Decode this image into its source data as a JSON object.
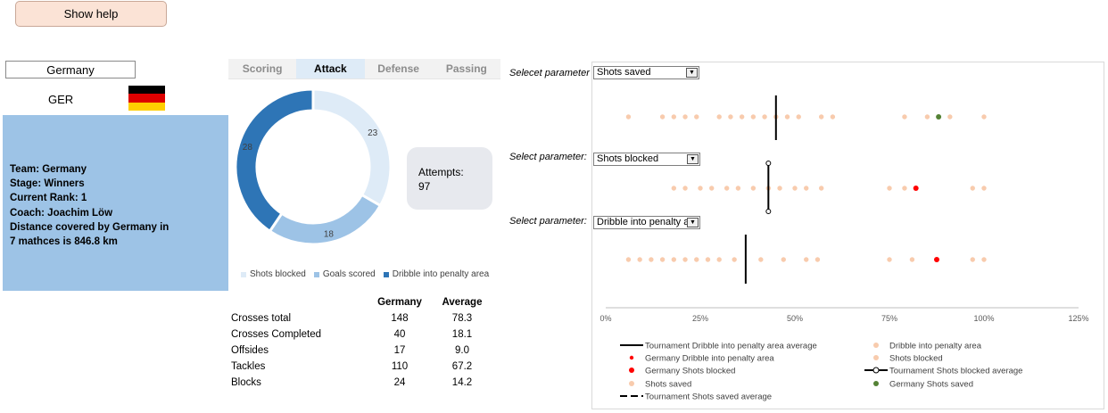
{
  "help_button": "Show help",
  "team_select": {
    "value": "Germany"
  },
  "team_code": "GER",
  "flag_colors": [
    "#000000",
    "#dd0000",
    "#ffce00"
  ],
  "info": {
    "lines": [
      "Team: Germany",
      "Stage: Winners",
      "Current Rank: 1",
      "Coach: Joachim Löw",
      "Distance covered by Germany in",
      "7 mathces is 846.8 km"
    ]
  },
  "tabs": [
    {
      "label": "Scoring",
      "active": false
    },
    {
      "label": "Attack",
      "active": true
    },
    {
      "label": "Defense",
      "active": false
    },
    {
      "label": "Passing",
      "active": false
    }
  ],
  "attempts": {
    "label": "Attempts:",
    "value": "97"
  },
  "stats_table": {
    "headers": [
      "",
      "Germany",
      "Average"
    ],
    "rows": [
      [
        "Crosses total",
        "148",
        "78.3"
      ],
      [
        "Crosses Completed",
        "40",
        "18.1"
      ],
      [
        "Offsides",
        "17",
        "9.0"
      ],
      [
        "Tackles",
        "110",
        "67.2"
      ],
      [
        "Blocks",
        "24",
        "14.2"
      ]
    ]
  },
  "selectors": [
    {
      "label": "Selecet parameter",
      "value": "Shots saved"
    },
    {
      "label": "Select parameter:",
      "value": "Shots blocked"
    },
    {
      "label": "Select parameter:",
      "value": "Dribble into penalty ar"
    }
  ],
  "chart_data": [
    {
      "type": "pie",
      "variant": "donut",
      "categories": [
        "Shots blocked",
        "Goals scored",
        "Dribble into penalty area"
      ],
      "values": [
        23,
        18,
        28
      ],
      "colors": [
        "#deebf7",
        "#9dc3e6",
        "#2e75b6"
      ],
      "legend": "bottom"
    },
    {
      "type": "scatter",
      "variant": "dot-strip",
      "xlim": [
        0,
        1.25
      ],
      "xticks": [
        0,
        0.25,
        0.5,
        0.75,
        1.0,
        1.25
      ],
      "xtick_labels": [
        "0%",
        "25%",
        "50%",
        "75%",
        "100%",
        "125%"
      ],
      "grid": false,
      "rows": [
        {
          "name": "Shots saved",
          "points": [
            0.06,
            0.15,
            0.18,
            0.21,
            0.24,
            0.3,
            0.33,
            0.36,
            0.39,
            0.42,
            0.45,
            0.48,
            0.51,
            0.57,
            0.6,
            0.79,
            0.85,
            0.91,
            1.0
          ],
          "highlight": 0.88,
          "highlight_color": "#548235",
          "average": 0.45,
          "average_style": "solid"
        },
        {
          "name": "Shots blocked",
          "points": [
            0.18,
            0.21,
            0.25,
            0.28,
            0.32,
            0.35,
            0.39,
            0.43,
            0.46,
            0.5,
            0.53,
            0.57,
            0.75,
            0.79,
            0.97,
            1.0
          ],
          "highlight": 0.82,
          "highlight_color": "#ff0000",
          "average": 0.43,
          "average_style": "circle-ends"
        },
        {
          "name": "Dribble into penalty area",
          "points": [
            0.06,
            0.09,
            0.12,
            0.15,
            0.18,
            0.21,
            0.24,
            0.27,
            0.3,
            0.34,
            0.41,
            0.47,
            0.53,
            0.56,
            0.75,
            0.81,
            0.97,
            1.0
          ],
          "highlight": 0.875,
          "highlight_color": "#ff0000",
          "average": 0.37,
          "average_style": "solid"
        }
      ],
      "legend": [
        {
          "text": "Tournament Dribble into penalty area average",
          "marker": "line",
          "color": "#000000"
        },
        {
          "text": "Dribble into penalty area",
          "marker": "dot",
          "color": "#f8cbad"
        },
        {
          "text": "Germany Dribble into penalty area",
          "marker": "small-dot",
          "color": "#ff0000"
        },
        {
          "text": "Shots blocked",
          "marker": "dot",
          "color": "#f8cbad"
        },
        {
          "text": "Germany Shots blocked",
          "marker": "dot",
          "color": "#ff0000"
        },
        {
          "text": "Tournament Shots blocked average",
          "marker": "line-circle",
          "color": "#000000"
        },
        {
          "text": "Shots saved",
          "marker": "dot",
          "color": "#f8cbad"
        },
        {
          "text": "Germany Shots saved",
          "marker": "dot",
          "color": "#548235"
        },
        {
          "text": "Tournament Shots saved average",
          "marker": "dash",
          "color": "#000000"
        }
      ],
      "dot_color": "#f8cbad"
    }
  ]
}
